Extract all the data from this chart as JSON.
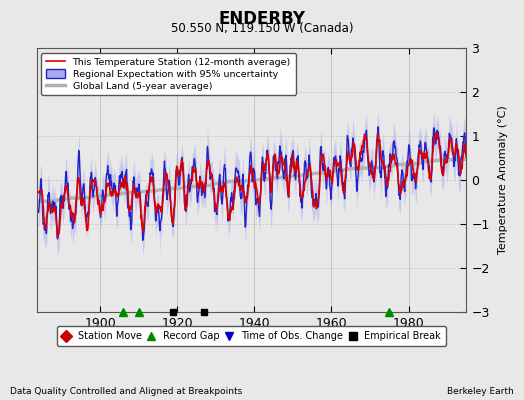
{
  "title": "ENDERBY",
  "subtitle": "50.550 N, 119.150 W (Canada)",
  "ylabel": "Temperature Anomaly (°C)",
  "xlabel_note": "Data Quality Controlled and Aligned at Breakpoints",
  "credit": "Berkeley Earth",
  "year_start": 1884,
  "year_end": 1994,
  "ylim": [
    -3,
    3
  ],
  "yticks": [
    -3,
    -2,
    -1,
    0,
    1,
    2,
    3
  ],
  "xticks": [
    1900,
    1920,
    1940,
    1960,
    1980
  ],
  "bg_color": "#e8e8e8",
  "plot_bg_color": "#e8e8e8",
  "legend_items": [
    {
      "label": "This Temperature Station (12-month average)",
      "color": "#dd0000",
      "lw": 1.2
    },
    {
      "label": "Regional Expectation with 95% uncertainty",
      "color": "#2222cc",
      "lw": 1.0
    },
    {
      "label": "Global Land (5-year average)",
      "color": "#b0b0b0",
      "lw": 2.5
    }
  ],
  "uncertainty_color": "#aaaaee",
  "uncertainty_alpha": 0.5,
  "marker_items": [
    {
      "label": "Station Move",
      "color": "#cc0000",
      "marker": "D"
    },
    {
      "label": "Record Gap",
      "color": "#008800",
      "marker": "^"
    },
    {
      "label": "Time of Obs. Change",
      "color": "#0000cc",
      "marker": "v"
    },
    {
      "label": "Empirical Break",
      "color": "#000000",
      "marker": "s"
    }
  ],
  "record_gaps": [
    1906,
    1910,
    1975
  ],
  "empirical_breaks": [
    1919,
    1927
  ],
  "seed": 7
}
